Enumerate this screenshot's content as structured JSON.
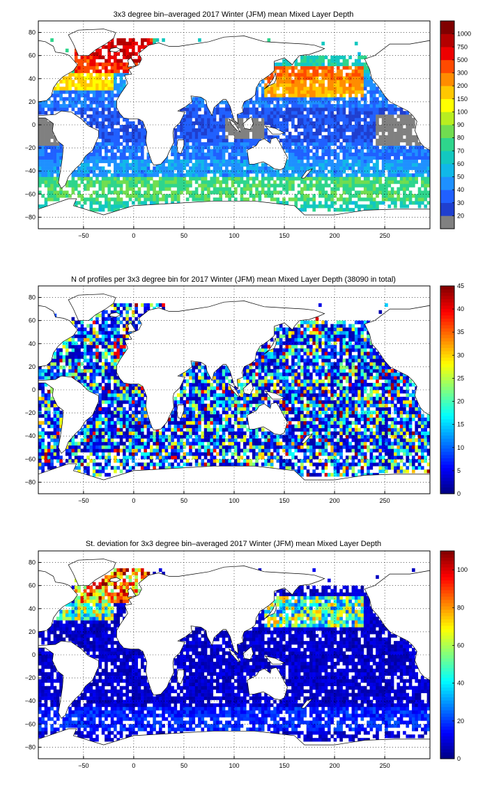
{
  "chart_data": [
    {
      "type": "heatmap",
      "title": "3x3 degree bin–averaged 2017 Winter (JFM) mean Mixed Layer Depth",
      "xlim": [
        -95,
        295
      ],
      "ylim": [
        -90,
        90
      ],
      "x_ticks": [
        -50,
        0,
        50,
        100,
        150,
        200,
        250
      ],
      "y_ticks": [
        -80,
        -60,
        -40,
        -20,
        0,
        20,
        40,
        60,
        80
      ],
      "grid": true,
      "colorbar": {
        "scale": "categorical",
        "ticks": [
          "20",
          "30",
          "40",
          "50",
          "60",
          "70",
          "80",
          "90",
          "100",
          "150",
          "200",
          "300",
          "500",
          "750",
          "1000"
        ],
        "colors": [
          "#808080",
          "#1f3fcf",
          "#2060ff",
          "#1e90ff",
          "#10b8e8",
          "#12c8c0",
          "#2ed58c",
          "#70dd50",
          "#b8ee20",
          "#ffff00",
          "#ffc800",
          "#ff8c00",
          "#ff4a00",
          "#ee0000",
          "#b40000",
          "#800000"
        ]
      }
    },
    {
      "type": "heatmap",
      "title": "N of profiles per 3x3 degree bin for 2017 Winter (JFM) mean Mixed Layer Depth  (38090 in total)",
      "xlim": [
        -95,
        295
      ],
      "ylim": [
        -90,
        90
      ],
      "x_ticks": [
        -50,
        0,
        50,
        100,
        150,
        200,
        250
      ],
      "y_ticks": [
        -80,
        -60,
        -40,
        -20,
        0,
        20,
        40,
        60,
        80
      ],
      "grid": true,
      "colorbar": {
        "scale": "linear",
        "range": [
          0,
          45
        ],
        "ticks": [
          "0",
          "5",
          "10",
          "15",
          "20",
          "25",
          "30",
          "35",
          "40",
          "45"
        ]
      }
    },
    {
      "type": "heatmap",
      "title": "St. deviation for 3x3 degree bin–averaged 2017 Winter (JFM) mean Mixed Layer Depth",
      "xlim": [
        -95,
        295
      ],
      "ylim": [
        -90,
        90
      ],
      "x_ticks": [
        -50,
        0,
        50,
        100,
        150,
        200,
        250
      ],
      "y_ticks": [
        -80,
        -60,
        -40,
        -20,
        0,
        20,
        40,
        60,
        80
      ],
      "grid": true,
      "colorbar": {
        "scale": "linear",
        "range": [
          0,
          110
        ],
        "ticks": [
          "0",
          "20",
          "40",
          "60",
          "80",
          "100"
        ]
      }
    }
  ]
}
